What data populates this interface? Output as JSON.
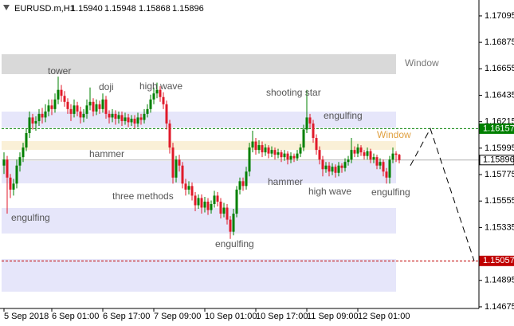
{
  "chart_data": {
    "type": "candlestick",
    "title": "EURUSD.m,H1",
    "last_labels": [
      "1.15940",
      "1.15948",
      "1.15868",
      "1.15896"
    ],
    "up_color": "#008000",
    "down_color": "#e01a2a",
    "ylim": [
      1.14668,
      1.17214
    ],
    "yticks": [
      1.14675,
      1.14895,
      1.15335,
      1.15555,
      1.15775,
      1.15995,
      1.16215,
      1.16435,
      1.16655,
      1.16875,
      1.17095
    ],
    "xlim": [
      -0.75,
      149
    ],
    "xticks": [
      {
        "value": 0,
        "label": "5 Sep 2018"
      },
      {
        "value": 15,
        "label": "6 Sep 01:00"
      },
      {
        "value": 31,
        "label": "6 Sep 17:00"
      },
      {
        "value": 47,
        "label": "7 Sep 09:00"
      },
      {
        "value": 63,
        "label": "10 Sep 01:00"
      },
      {
        "value": 79,
        "label": "10 Sep 17:00"
      },
      {
        "value": 95,
        "label": "11 Sep 09:00"
      },
      {
        "value": 111,
        "label": "12 Sep 01:00"
      }
    ],
    "ohlc": [
      [
        1.1585,
        1.1596,
        1.1578,
        1.159
      ],
      [
        1.159,
        1.1593,
        1.1545,
        1.1575
      ],
      [
        1.1575,
        1.1578,
        1.1558,
        1.1565
      ],
      [
        1.1565,
        1.1574,
        1.156,
        1.157
      ],
      [
        1.157,
        1.159,
        1.1566,
        1.1585
      ],
      [
        1.1585,
        1.1596,
        1.158,
        1.1592
      ],
      [
        1.1592,
        1.1604,
        1.1588,
        1.16
      ],
      [
        1.16,
        1.1616,
        1.1597,
        1.1612
      ],
      [
        1.1612,
        1.163,
        1.1608,
        1.1625
      ],
      [
        1.1625,
        1.1628,
        1.1615,
        1.162
      ],
      [
        1.162,
        1.1626,
        1.1614,
        1.1622
      ],
      [
        1.1622,
        1.1632,
        1.1618,
        1.1628
      ],
      [
        1.1628,
        1.1633,
        1.162,
        1.1625
      ],
      [
        1.1625,
        1.1636,
        1.1621,
        1.163
      ],
      [
        1.163,
        1.164,
        1.1626,
        1.1635
      ],
      [
        1.1635,
        1.164,
        1.1627,
        1.1632
      ],
      [
        1.1632,
        1.1645,
        1.1629,
        1.164
      ],
      [
        1.164,
        1.1659,
        1.1636,
        1.1648
      ],
      [
        1.1648,
        1.1652,
        1.1638,
        1.1643
      ],
      [
        1.1643,
        1.1647,
        1.1634,
        1.1638
      ],
      [
        1.1638,
        1.1641,
        1.1628,
        1.1632
      ],
      [
        1.1632,
        1.1636,
        1.1622,
        1.1628
      ],
      [
        1.1628,
        1.164,
        1.1625,
        1.1635
      ],
      [
        1.1635,
        1.1638,
        1.1626,
        1.163
      ],
      [
        1.163,
        1.1634,
        1.162,
        1.1625
      ],
      [
        1.1625,
        1.1632,
        1.1621,
        1.1628
      ],
      [
        1.1628,
        1.164,
        1.1624,
        1.1635
      ],
      [
        1.1635,
        1.165,
        1.1631,
        1.1638
      ],
      [
        1.1638,
        1.1641,
        1.1626,
        1.163
      ],
      [
        1.163,
        1.164,
        1.1627,
        1.1636
      ],
      [
        1.1636,
        1.1639,
        1.1628,
        1.1632
      ],
      [
        1.1632,
        1.1645,
        1.1629,
        1.164
      ],
      [
        1.164,
        1.1643,
        1.1624,
        1.1628
      ],
      [
        1.1628,
        1.1631,
        1.162,
        1.1625
      ],
      [
        1.1625,
        1.1632,
        1.1621,
        1.1628
      ],
      [
        1.1628,
        1.1631,
        1.1619,
        1.1624
      ],
      [
        1.1624,
        1.163,
        1.162,
        1.1627
      ],
      [
        1.1627,
        1.163,
        1.1618,
        1.1622
      ],
      [
        1.1622,
        1.1629,
        1.1619,
        1.1625
      ],
      [
        1.1625,
        1.1628,
        1.1617,
        1.1621
      ],
      [
        1.1621,
        1.1627,
        1.1618,
        1.1624
      ],
      [
        1.1624,
        1.1627,
        1.1616,
        1.162
      ],
      [
        1.162,
        1.1629,
        1.1617,
        1.1625
      ],
      [
        1.1625,
        1.1628,
        1.1619,
        1.1623
      ],
      [
        1.1623,
        1.1632,
        1.162,
        1.1628
      ],
      [
        1.1628,
        1.1636,
        1.1625,
        1.1632
      ],
      [
        1.1632,
        1.1644,
        1.1629,
        1.164
      ],
      [
        1.164,
        1.165,
        1.1636,
        1.1645
      ],
      [
        1.1645,
        1.1654,
        1.1641,
        1.1648
      ],
      [
        1.1648,
        1.1651,
        1.1638,
        1.1642
      ],
      [
        1.1642,
        1.1646,
        1.1632,
        1.1636
      ],
      [
        1.1636,
        1.1639,
        1.1615,
        1.162
      ],
      [
        1.162,
        1.1623,
        1.1595,
        1.16
      ],
      [
        1.16,
        1.1604,
        1.157,
        1.1575
      ],
      [
        1.1575,
        1.1593,
        1.1571,
        1.159
      ],
      [
        1.159,
        1.1594,
        1.158,
        1.1585
      ],
      [
        1.1585,
        1.1588,
        1.1566,
        1.157
      ],
      [
        1.157,
        1.1574,
        1.156,
        1.1565
      ],
      [
        1.1565,
        1.1572,
        1.1561,
        1.1568
      ],
      [
        1.1568,
        1.1571,
        1.1556,
        1.156
      ],
      [
        1.156,
        1.1563,
        1.1547,
        1.1552
      ],
      [
        1.1552,
        1.1561,
        1.1549,
        1.1558
      ],
      [
        1.1558,
        1.1561,
        1.1545,
        1.155
      ],
      [
        1.155,
        1.1559,
        1.1546,
        1.1555
      ],
      [
        1.1555,
        1.1558,
        1.1544,
        1.1548
      ],
      [
        1.1548,
        1.1556,
        1.1545,
        1.1553
      ],
      [
        1.1553,
        1.1564,
        1.155,
        1.156
      ],
      [
        1.156,
        1.1563,
        1.1551,
        1.1555
      ],
      [
        1.1555,
        1.1558,
        1.1541,
        1.1545
      ],
      [
        1.1545,
        1.1554,
        1.1542,
        1.155
      ],
      [
        1.155,
        1.1553,
        1.1536,
        1.154
      ],
      [
        1.154,
        1.1543,
        1.1524,
        1.153
      ],
      [
        1.153,
        1.1549,
        1.1527,
        1.1545
      ],
      [
        1.1545,
        1.1568,
        1.1542,
        1.1565
      ],
      [
        1.1565,
        1.1575,
        1.1561,
        1.1572
      ],
      [
        1.1572,
        1.1575,
        1.1564,
        1.1568
      ],
      [
        1.1568,
        1.1584,
        1.1565,
        1.158
      ],
      [
        1.158,
        1.1604,
        1.1576,
        1.16
      ],
      [
        1.16,
        1.1614,
        1.1596,
        1.1605
      ],
      [
        1.1605,
        1.1608,
        1.1594,
        1.1598
      ],
      [
        1.1598,
        1.1606,
        1.1595,
        1.1602
      ],
      [
        1.1602,
        1.1605,
        1.1592,
        1.1596
      ],
      [
        1.1596,
        1.1603,
        1.1593,
        1.16
      ],
      [
        1.16,
        1.1602,
        1.1591,
        1.1595
      ],
      [
        1.1595,
        1.1601,
        1.1592,
        1.1598
      ],
      [
        1.1598,
        1.16,
        1.159,
        1.1594
      ],
      [
        1.1594,
        1.1599,
        1.1591,
        1.1596
      ],
      [
        1.1596,
        1.1598,
        1.1588,
        1.1592
      ],
      [
        1.1592,
        1.1598,
        1.1589,
        1.1595
      ],
      [
        1.1595,
        1.1597,
        1.1586,
        1.159
      ],
      [
        1.159,
        1.1596,
        1.1587,
        1.1593
      ],
      [
        1.1593,
        1.1595,
        1.1588,
        1.1591
      ],
      [
        1.1591,
        1.1598,
        1.1589,
        1.1595
      ],
      [
        1.1595,
        1.1603,
        1.1592,
        1.16
      ],
      [
        1.16,
        1.1619,
        1.1597,
        1.1615
      ],
      [
        1.1615,
        1.1648,
        1.1612,
        1.1625
      ],
      [
        1.1625,
        1.1628,
        1.1616,
        1.162
      ],
      [
        1.162,
        1.1623,
        1.1604,
        1.1608
      ],
      [
        1.1608,
        1.1611,
        1.1594,
        1.1598
      ],
      [
        1.1598,
        1.1601,
        1.1586,
        1.159
      ],
      [
        1.159,
        1.1593,
        1.1576,
        1.1582
      ],
      [
        1.1582,
        1.1588,
        1.1579,
        1.1585
      ],
      [
        1.1585,
        1.1588,
        1.1576,
        1.158
      ],
      [
        1.158,
        1.1587,
        1.1577,
        1.1584
      ],
      [
        1.1584,
        1.1586,
        1.1575,
        1.1579
      ],
      [
        1.1579,
        1.1588,
        1.1576,
        1.1585
      ],
      [
        1.1585,
        1.1587,
        1.1579,
        1.1583
      ],
      [
        1.1583,
        1.1591,
        1.158,
        1.1588
      ],
      [
        1.1588,
        1.1593,
        1.1585,
        1.159
      ],
      [
        1.159,
        1.1608,
        1.1587,
        1.1598
      ],
      [
        1.1598,
        1.1601,
        1.1592,
        1.1595
      ],
      [
        1.1595,
        1.1603,
        1.1592,
        1.16
      ],
      [
        1.16,
        1.1602,
        1.1593,
        1.1596
      ],
      [
        1.1596,
        1.1598,
        1.159,
        1.1593
      ],
      [
        1.1593,
        1.16,
        1.159,
        1.1597
      ],
      [
        1.1597,
        1.1599,
        1.1587,
        1.159
      ],
      [
        1.159,
        1.1595,
        1.1587,
        1.1592
      ],
      [
        1.1592,
        1.1594,
        1.1582,
        1.1585
      ],
      [
        1.1585,
        1.1591,
        1.1582,
        1.1588
      ],
      [
        1.1588,
        1.159,
        1.1576,
        1.158
      ],
      [
        1.158,
        1.1583,
        1.157,
        1.1575
      ],
      [
        1.1575,
        1.1593,
        1.157,
        1.159
      ],
      [
        1.159,
        1.16,
        1.1587,
        1.1595
      ],
      [
        1.1595,
        1.1597,
        1.1588,
        1.1594
      ],
      [
        1.1594,
        1.15948,
        1.15868,
        1.15896
      ]
    ],
    "zones": [
      {
        "from": 1.16776,
        "to": 1.16611,
        "color": "#d9d9d9"
      },
      {
        "from": 1.16299,
        "to": 1.16166,
        "color": "#e6e6fa"
      },
      {
        "from": 1.16054,
        "to": 1.15981,
        "color": "#faf0d7"
      },
      {
        "from": 1.15888,
        "to": 1.15702,
        "color": "#e6e6fa"
      },
      {
        "from": 1.15497,
        "to": 1.15285,
        "color": "#e6e6fa"
      },
      {
        "from": 1.15073,
        "to": 1.14801,
        "color": "#e6e6fa"
      }
    ],
    "price_tags": [
      {
        "value": 1.16157,
        "color": "#008000",
        "text_color": "#ffffff",
        "dash": true
      },
      {
        "value": 1.15896,
        "color": "#ffffff",
        "text_color": "#000000",
        "dash": false
      },
      {
        "value": 1.15057,
        "color": "#c00000",
        "text_color": "#ffffff",
        "dash": true
      }
    ],
    "projection": {
      "x": [
        127.5,
        133.75,
        147.5
      ],
      "values": [
        1.1585,
        1.16157,
        1.15057
      ]
    },
    "annotations": [
      "tower",
      "doji",
      "high wave",
      "hammer",
      "three methods",
      "engulfing",
      "shooting star",
      "engulfing",
      "Window",
      "hammer",
      "high wave",
      "engulfing",
      "engulfing",
      "Window"
    ]
  }
}
